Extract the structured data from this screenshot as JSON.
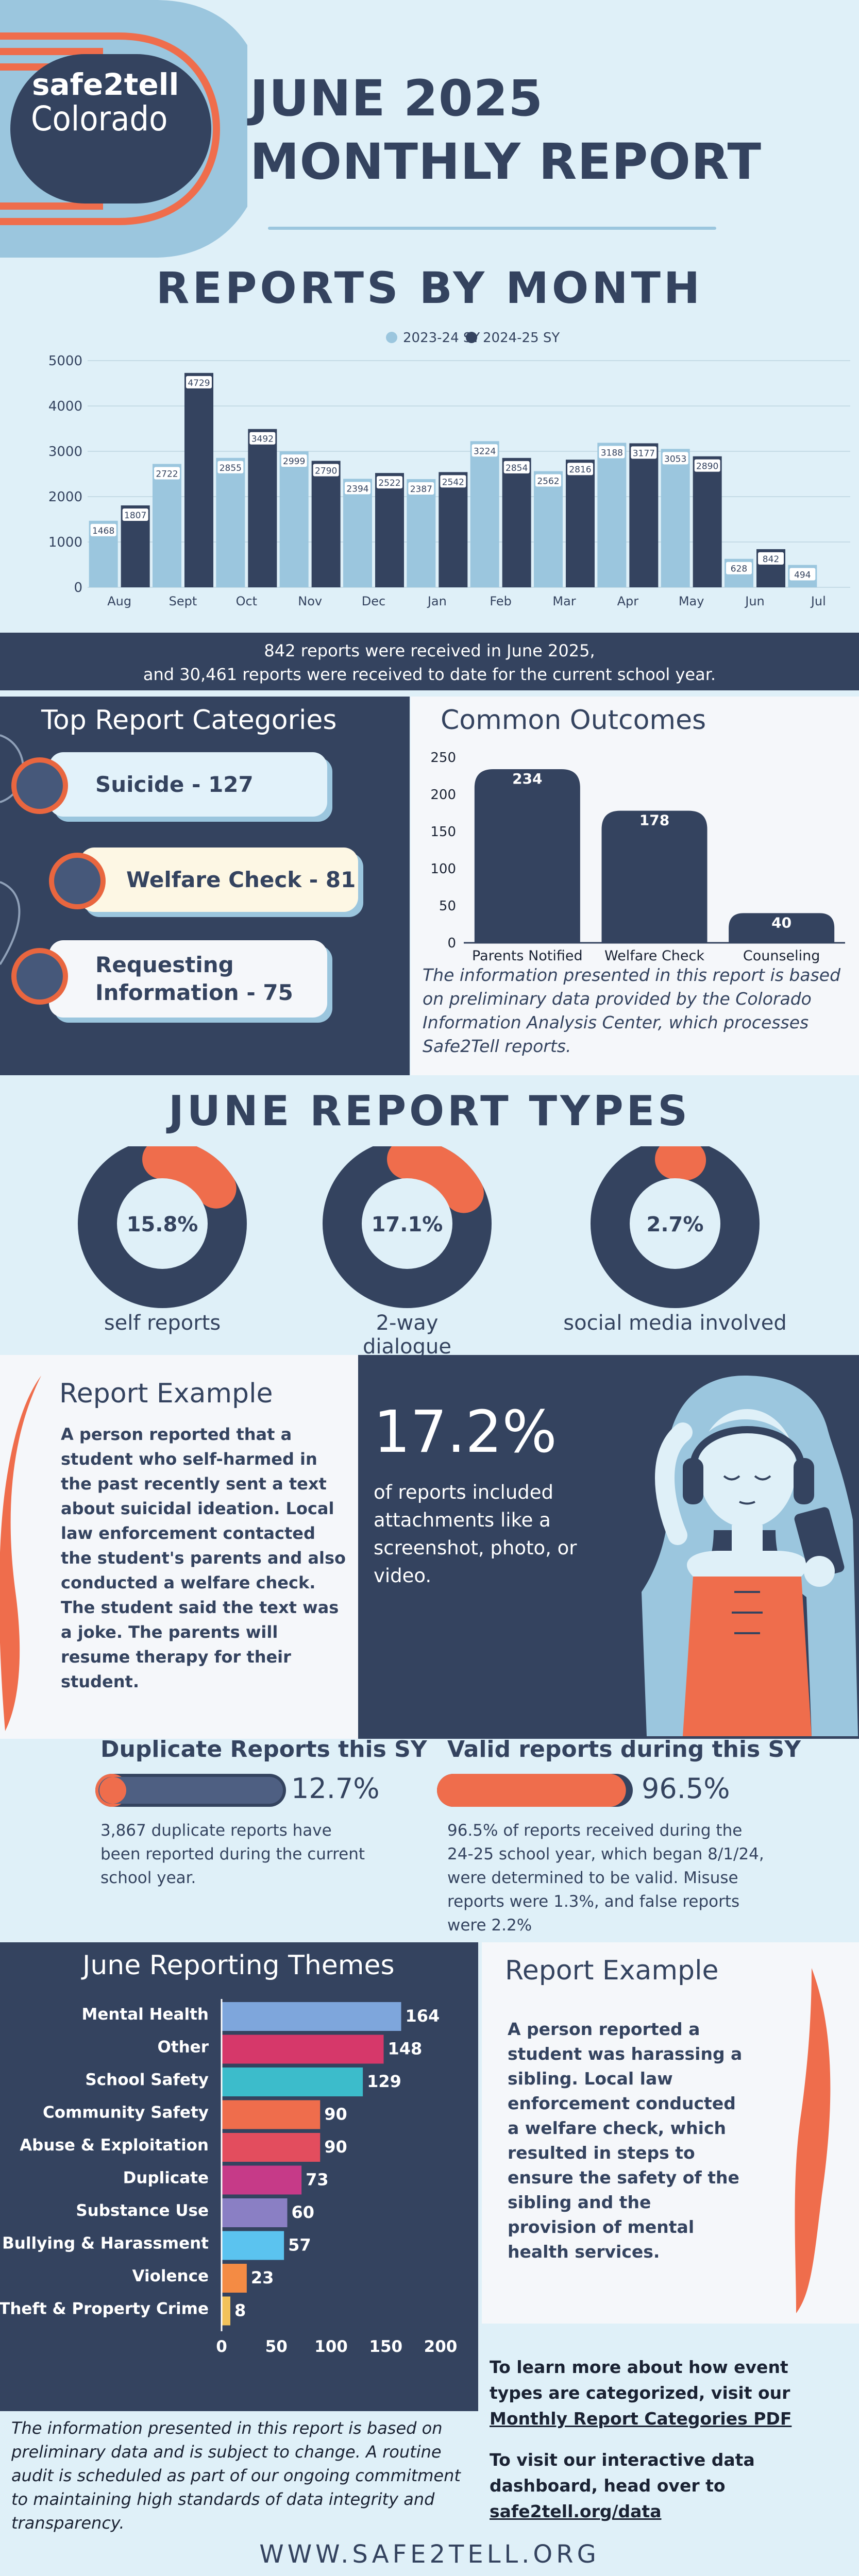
{
  "header": {
    "title_line1": "JUNE 2025",
    "title_line2": "MONTHLY REPORT",
    "logo_line1": "safe2tell",
    "logo_line2": "Colorado"
  },
  "reports_by_month": {
    "title": "REPORTS BY MONTH",
    "legend": [
      "2023-24 SY",
      "2024-25 SY"
    ]
  },
  "summary": {
    "line1": "842 reports were received in June 2025,",
    "line2": "and 30,461 reports were received to date for the current school year."
  },
  "top_categories": {
    "title": "Top Report Categories",
    "items": [
      "Suicide - 127",
      "Welfare Check - 81",
      "Requesting Information - 75"
    ]
  },
  "common_outcomes": {
    "title": "Common Outcomes",
    "note": "The information presented in this report is based on preliminary data provided by the Colorado Information Analysis Center, which processes Safe2Tell reports."
  },
  "report_types": {
    "title": "JUNE REPORT TYPES",
    "items": [
      {
        "pct_label": "15.8%",
        "value": 15.8,
        "label": "self reports"
      },
      {
        "pct_label": "17.1%",
        "value": 17.1,
        "label": "2-way dialogue"
      },
      {
        "pct_label": "2.7%",
        "value": 2.7,
        "label": "social media involved"
      }
    ]
  },
  "example1": {
    "title": "Report Example",
    "text": "A person reported that a student who self-harmed in the past recently sent a text about suicidal ideation. Local law enforcement contacted the student's parents and also conducted a welfare check. The student said the text was a joke. The parents will resume therapy for their student."
  },
  "attachments": {
    "pct": "17.2%",
    "text": "of reports included attachments like a screenshot, photo, or video."
  },
  "duplicate": {
    "title": "Duplicate Reports this SY",
    "pct_label": "12.7%",
    "value": 12.7,
    "text": "3,867 duplicate reports have been reported during the current school year."
  },
  "valid": {
    "title": "Valid reports during this SY",
    "pct_label": "96.5%",
    "value": 96.5,
    "text": "96.5% of reports received during the 24-25 school year, which began 8/1/24, were determined to be valid. Misuse reports were 1.3%, and false reports were 2.2%"
  },
  "themes": {
    "title": "June Reporting Themes"
  },
  "example2": {
    "title": "Report Example",
    "text": "A person reported a student was harassing a sibling. Local law enforcement conducted a welfare check, which resulted in steps to ensure the safety of the sibling and the provision of mental health services."
  },
  "learn_more": {
    "text1": "To learn more about how event types are categorized, visit our ",
    "link1": "Monthly Report Categories PDF",
    "text2": "To visit our interactive data dashboard, head over to ",
    "link2": "safe2tell.org/data"
  },
  "footer_note": "The information presented in this report is based on preliminary data and is subject to change. A routine audit is scheduled as part of our ongoing commitment to maintaining high standards of data integrity and transparency.",
  "website": "WWW.SAFE2TELL.ORG",
  "colors": {
    "navy": "#34435f",
    "light_blue": "#9bc6de",
    "orange": "#ef6d4c",
    "background": "#dff0f8"
  },
  "chart_data": [
    {
      "type": "bar",
      "title": "REPORTS BY MONTH",
      "categories": [
        "Aug",
        "Sept",
        "Oct",
        "Nov",
        "Dec",
        "Jan",
        "Feb",
        "Mar",
        "Apr",
        "May",
        "Jun",
        "Jul"
      ],
      "series": [
        {
          "name": "2023-24 SY",
          "color": "#9bc6de",
          "values": [
            1468,
            2722,
            2855,
            2999,
            2394,
            2387,
            3224,
            2562,
            3188,
            3053,
            628,
            494
          ]
        },
        {
          "name": "2024-25 SY",
          "color": "#34435f",
          "values": [
            1807,
            4729,
            3492,
            2790,
            2522,
            2542,
            2854,
            2816,
            3177,
            2890,
            842,
            null
          ]
        }
      ],
      "ylim": [
        0,
        5000
      ],
      "yticks": [
        0,
        1000,
        2000,
        3000,
        4000,
        5000
      ],
      "grid": true,
      "legend": "top-center"
    },
    {
      "type": "bar",
      "title": "Common Outcomes",
      "categories": [
        "Parents Notified",
        "Welfare Check",
        "Counseling"
      ],
      "values": [
        234,
        178,
        40
      ],
      "ylim": [
        0,
        250
      ],
      "yticks": [
        0,
        50,
        100,
        150,
        200,
        250
      ]
    },
    {
      "type": "bar",
      "orientation": "horizontal",
      "title": "June Reporting Themes",
      "categories": [
        "Mental Health",
        "Other",
        "School Safety",
        "Community Safety",
        "Abuse & Exploitation",
        "Duplicate",
        "Substance Use",
        "Bullying & Harassment",
        "Violence",
        "Theft & Property Crime"
      ],
      "values": [
        164,
        148,
        129,
        90,
        90,
        73,
        60,
        57,
        23,
        8
      ],
      "colors": [
        "#7ea6dc",
        "#d6386a",
        "#3cbccb",
        "#ef6d4c",
        "#e34d5e",
        "#c63a88",
        "#8a7fc4",
        "#5bc3ef",
        "#f48b44",
        "#f2c25a"
      ],
      "xlim": [
        0,
        200
      ],
      "xticks": [
        0,
        50,
        100,
        150,
        200
      ]
    }
  ]
}
